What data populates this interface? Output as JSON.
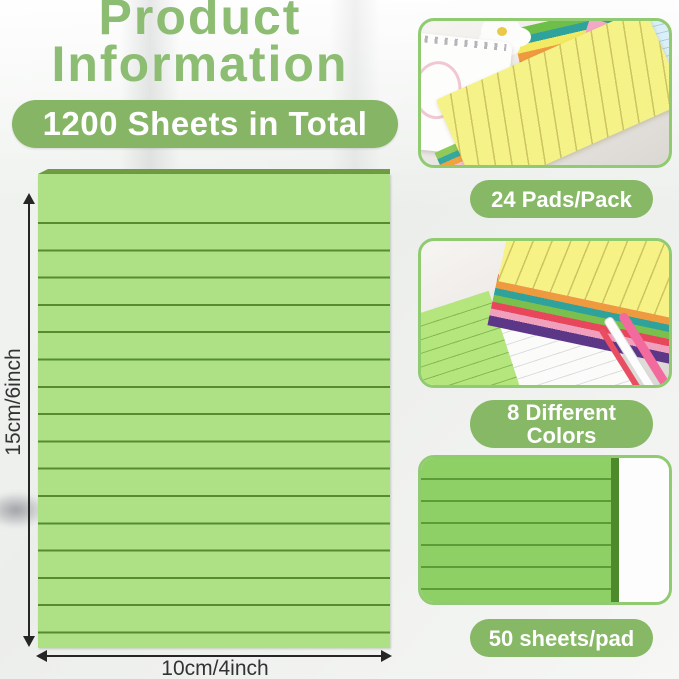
{
  "title": {
    "line1": "Product",
    "line2": "Information"
  },
  "hero_badge": {
    "label": "1200 Sheets in Total"
  },
  "pad_diagram": {
    "height_label": "15cm/6inch",
    "width_label": "10cm/4inch"
  },
  "panels": [
    {
      "id": "pads-per-pack",
      "caption": "24 Pads/Pack"
    },
    {
      "id": "different-colors",
      "caption": "8 Different Colors"
    },
    {
      "id": "sheets-per-pad",
      "caption": "50 sheets/pad"
    }
  ],
  "colors": {
    "title_green": "#8cbd73",
    "badge_green": "#87b866",
    "hero_badge_green": "#86b565",
    "pad_face_green": "#aee085",
    "pad_line_green": "#578c2e",
    "pad_top_edge_green": "#6e9b43",
    "panel_border_green": "#90cb72",
    "dimension_text": "#333333",
    "pad_colors_shown": [
      "#f5f287",
      "#8fca5a",
      "#36a89e",
      "#f09a3f",
      "#f6c0cd",
      "#e8465a",
      "#ef7fa8",
      "#5d3787"
    ]
  }
}
